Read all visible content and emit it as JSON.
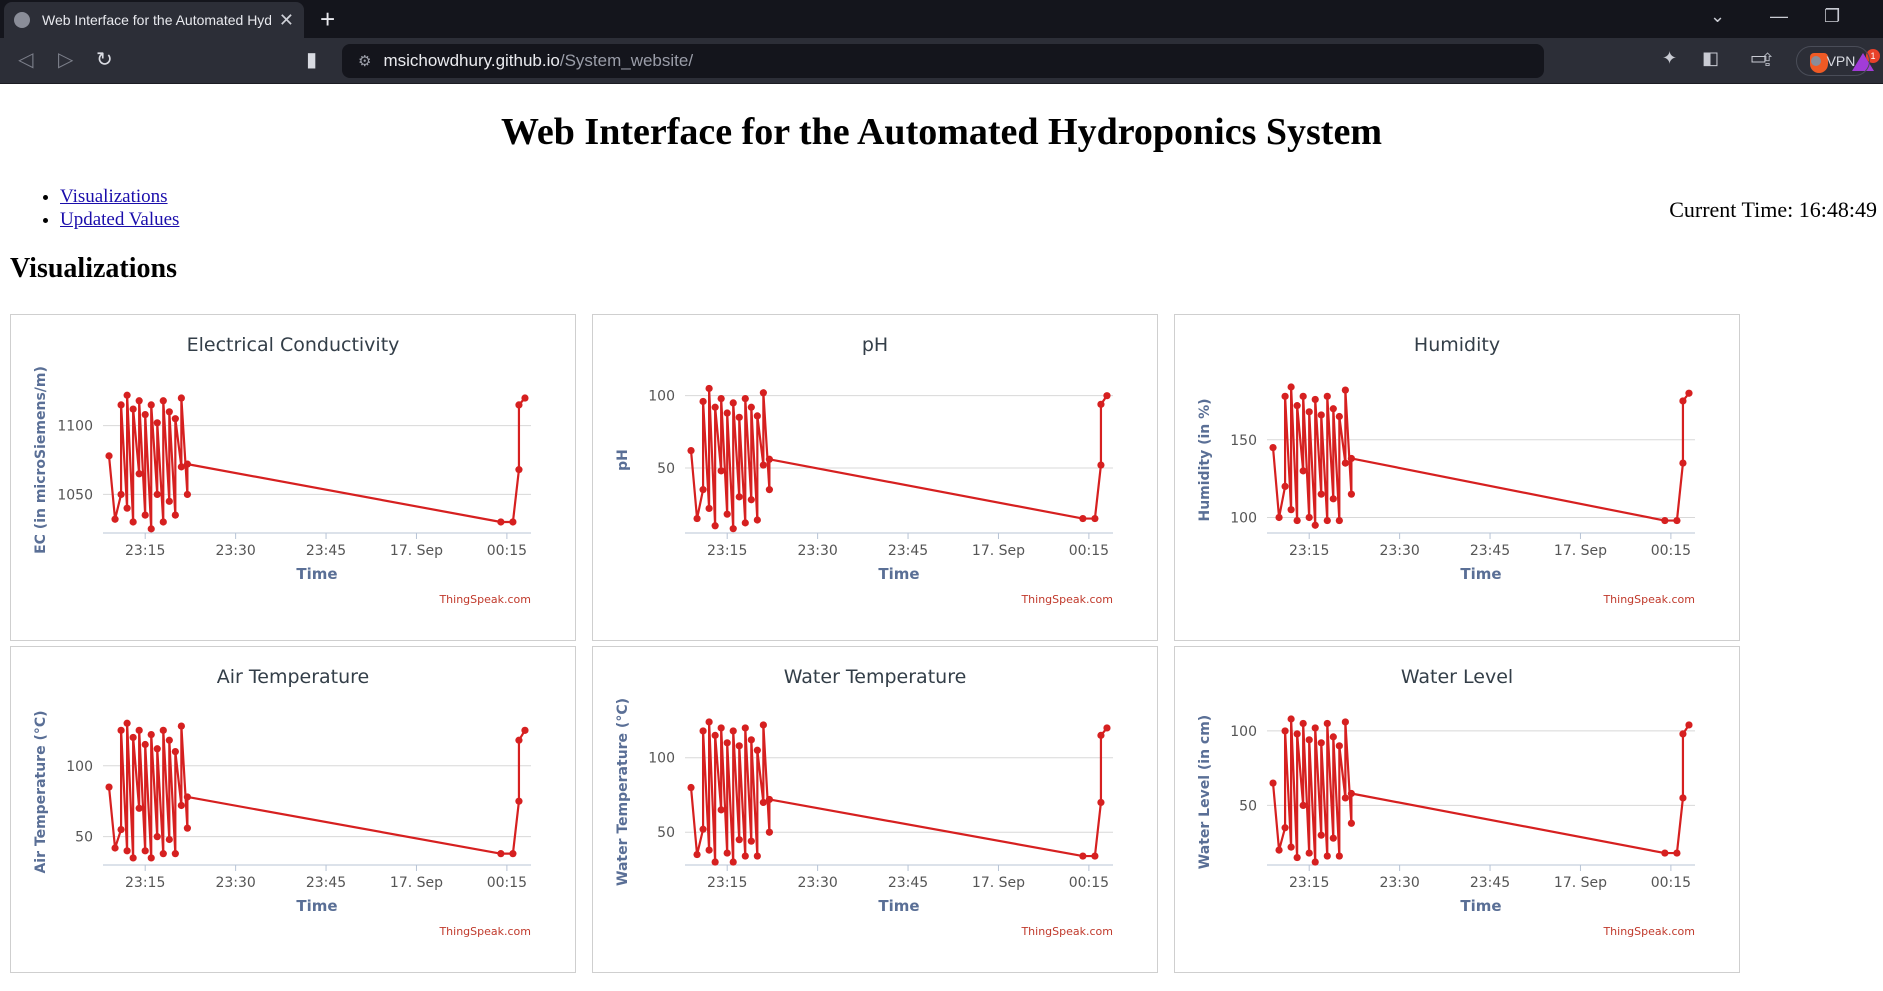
{
  "browser": {
    "tab_title": "Web Interface for the Automated Hydroponics System",
    "url_host": "msichowdhury.github.io",
    "url_path": "/System_website/",
    "vpn_label": "VPN",
    "rewards_badge": "1"
  },
  "page": {
    "title": "Web Interface for the Automated Hydroponics System",
    "links": [
      {
        "label": "Visualizations"
      },
      {
        "label": "Updated Values"
      }
    ],
    "current_time": "Current Time: 16:48:49",
    "section_title": "Visualizations"
  },
  "colors": {
    "series": "#d62020",
    "title_text": "#333e48",
    "axis_label": "#5a6f96",
    "grid": "#d8d8d8",
    "credit": "#c0392b"
  },
  "chart_common": {
    "xlabel": "Time",
    "x_ticks": [
      "23:15",
      "23:30",
      "23:45",
      "17. Sep",
      "00:15"
    ],
    "x_tick_times": [
      "23:15",
      "23:30",
      "23:45",
      "00:00",
      "00:15"
    ],
    "credit": "ThingSpeak.com"
  },
  "chart_data": [
    {
      "type": "line",
      "title": "Electrical Conductivity",
      "xlabel": "Time",
      "ylabel": "EC (in microSiemens/m)",
      "y_ticks": [
        1050,
        1100
      ],
      "ylim": [
        1022,
        1128
      ],
      "x": [
        "23:09",
        "23:10",
        "23:11",
        "23:11",
        "23:12",
        "23:12",
        "23:13",
        "23:13",
        "23:14",
        "23:14",
        "23:15",
        "23:15",
        "23:16",
        "23:16",
        "23:17",
        "23:17",
        "23:18",
        "23:18",
        "23:19",
        "23:19",
        "23:20",
        "23:20",
        "23:21",
        "23:21",
        "23:22",
        "23:22",
        "00:14",
        "00:16",
        "00:17",
        "00:17",
        "00:18"
      ],
      "y": [
        1078,
        1032,
        1050,
        1115,
        1040,
        1122,
        1030,
        1112,
        1065,
        1118,
        1035,
        1108,
        1025,
        1115,
        1050,
        1102,
        1030,
        1118,
        1045,
        1110,
        1035,
        1105,
        1070,
        1120,
        1050,
        1072,
        1030,
        1030,
        1068,
        1115,
        1120
      ]
    },
    {
      "type": "line",
      "title": "pH",
      "xlabel": "Time",
      "ylabel": "pH",
      "y_ticks": [
        50,
        100
      ],
      "ylim": [
        5,
        106
      ],
      "x": [
        "23:09",
        "23:10",
        "23:11",
        "23:11",
        "23:12",
        "23:12",
        "23:13",
        "23:13",
        "23:14",
        "23:14",
        "23:15",
        "23:15",
        "23:16",
        "23:16",
        "23:17",
        "23:17",
        "23:18",
        "23:18",
        "23:19",
        "23:19",
        "23:20",
        "23:20",
        "23:21",
        "23:21",
        "23:22",
        "23:22",
        "00:14",
        "00:16",
        "00:17",
        "00:17",
        "00:18"
      ],
      "y": [
        62,
        15,
        35,
        96,
        22,
        105,
        10,
        92,
        48,
        98,
        18,
        88,
        8,
        95,
        30,
        85,
        12,
        98,
        28,
        92,
        14,
        86,
        52,
        102,
        35,
        56,
        15,
        15,
        52,
        94,
        100
      ]
    },
    {
      "type": "line",
      "title": "Humidity",
      "xlabel": "Time",
      "ylabel": "Humidity (in %)",
      "y_ticks": [
        100,
        150
      ],
      "ylim": [
        90,
        184
      ],
      "x": [
        "23:09",
        "23:10",
        "23:11",
        "23:11",
        "23:12",
        "23:12",
        "23:13",
        "23:13",
        "23:14",
        "23:14",
        "23:15",
        "23:15",
        "23:16",
        "23:16",
        "23:17",
        "23:17",
        "23:18",
        "23:18",
        "23:19",
        "23:19",
        "23:20",
        "23:20",
        "23:21",
        "23:21",
        "23:22",
        "23:22",
        "00:14",
        "00:16",
        "00:17",
        "00:17",
        "00:18"
      ],
      "y": [
        145,
        100,
        120,
        178,
        105,
        184,
        98,
        172,
        130,
        178,
        100,
        168,
        95,
        176,
        115,
        166,
        98,
        178,
        112,
        170,
        98,
        165,
        135,
        182,
        115,
        138,
        98,
        98,
        135,
        175,
        180
      ]
    },
    {
      "type": "line",
      "title": "Air Temperature",
      "xlabel": "Time",
      "ylabel": "Air Temperature (°C)",
      "y_ticks": [
        50,
        100
      ],
      "ylim": [
        30,
        133
      ],
      "x": [
        "23:09",
        "23:10",
        "23:11",
        "23:11",
        "23:12",
        "23:12",
        "23:13",
        "23:13",
        "23:14",
        "23:14",
        "23:15",
        "23:15",
        "23:16",
        "23:16",
        "23:17",
        "23:17",
        "23:18",
        "23:18",
        "23:19",
        "23:19",
        "23:20",
        "23:20",
        "23:21",
        "23:21",
        "23:22",
        "23:22",
        "00:14",
        "00:16",
        "00:17",
        "00:17",
        "00:18"
      ],
      "y": [
        85,
        42,
        55,
        125,
        40,
        130,
        35,
        120,
        70,
        125,
        40,
        115,
        35,
        122,
        50,
        112,
        38,
        125,
        48,
        118,
        38,
        110,
        72,
        128,
        56,
        78,
        38,
        38,
        75,
        118,
        125
      ]
    },
    {
      "type": "line",
      "title": "Water Temperature",
      "xlabel": "Time",
      "ylabel": "Water Temperature (°C)",
      "y_ticks": [
        50,
        100
      ],
      "ylim": [
        28,
        126
      ],
      "x": [
        "23:09",
        "23:10",
        "23:11",
        "23:11",
        "23:12",
        "23:12",
        "23:13",
        "23:13",
        "23:14",
        "23:14",
        "23:15",
        "23:15",
        "23:16",
        "23:16",
        "23:17",
        "23:17",
        "23:18",
        "23:18",
        "23:19",
        "23:19",
        "23:20",
        "23:20",
        "23:21",
        "23:21",
        "23:22",
        "23:22",
        "00:14",
        "00:16",
        "00:17",
        "00:17",
        "00:18"
      ],
      "y": [
        80,
        35,
        52,
        118,
        38,
        124,
        30,
        115,
        65,
        120,
        36,
        110,
        30,
        118,
        45,
        108,
        34,
        120,
        44,
        112,
        34,
        105,
        70,
        122,
        50,
        72,
        34,
        34,
        70,
        115,
        120
      ]
    },
    {
      "type": "line",
      "title": "Water Level",
      "xlabel": "Time",
      "ylabel": "Water Level (in cm)",
      "y_ticks": [
        50,
        100
      ],
      "ylim": [
        10,
        108
      ],
      "x": [
        "23:09",
        "23:10",
        "23:11",
        "23:11",
        "23:12",
        "23:12",
        "23:13",
        "23:13",
        "23:14",
        "23:14",
        "23:15",
        "23:15",
        "23:16",
        "23:16",
        "23:17",
        "23:17",
        "23:18",
        "23:18",
        "23:19",
        "23:19",
        "23:20",
        "23:20",
        "23:21",
        "23:21",
        "23:22",
        "23:22",
        "00:14",
        "00:16",
        "00:17",
        "00:17",
        "00:18"
      ],
      "y": [
        65,
        20,
        35,
        100,
        22,
        108,
        15,
        98,
        50,
        105,
        18,
        94,
        12,
        102,
        30,
        92,
        16,
        105,
        28,
        96,
        16,
        90,
        55,
        106,
        38,
        58,
        18,
        18,
        55,
        98,
        104
      ]
    }
  ]
}
